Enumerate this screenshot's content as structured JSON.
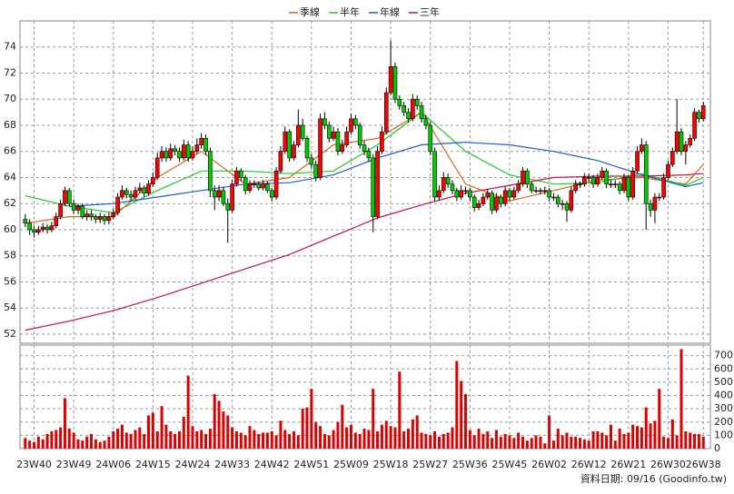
{
  "chart_data": {
    "type": "candlestick",
    "up_color": "#ff0000",
    "down_color": "#00cc00",
    "xlim": [
      -1.2,
      155.6
    ],
    "ylim": [
      51.3,
      76
    ],
    "yticks": [
      52,
      54,
      56,
      58,
      60,
      62,
      64,
      66,
      68,
      70,
      72,
      74
    ],
    "xticks": [
      {
        "value": 2,
        "label": "23W40"
      },
      {
        "value": 11,
        "label": "23W49"
      },
      {
        "value": 20,
        "label": "24W06"
      },
      {
        "value": 29,
        "label": "24W15"
      },
      {
        "value": 38,
        "label": "24W24"
      },
      {
        "value": 47,
        "label": "24W33"
      },
      {
        "value": 56,
        "label": "24W42"
      },
      {
        "value": 65,
        "label": "24W51"
      },
      {
        "value": 74,
        "label": "25W09"
      },
      {
        "value": 83,
        "label": "25W18"
      },
      {
        "value": 92,
        "label": "25W27"
      },
      {
        "value": 101,
        "label": "25W36"
      },
      {
        "value": 110,
        "label": "25W45"
      },
      {
        "value": 119,
        "label": "26W02"
      },
      {
        "value": 128,
        "label": "26W12"
      },
      {
        "value": 137,
        "label": "26W21"
      },
      {
        "value": 146,
        "label": "26W30"
      },
      {
        "value": 154,
        "label": "26W38"
      }
    ],
    "grid": true,
    "ohlc": [
      [
        60.8,
        61.2,
        60.2,
        60.5
      ],
      [
        60.5,
        60.8,
        59.6,
        60
      ],
      [
        60,
        60.3,
        59.4,
        59.8
      ],
      [
        59.8,
        60.3,
        59.6,
        60
      ],
      [
        60,
        60.5,
        59.8,
        60.2
      ],
      [
        60.2,
        60.4,
        59.7,
        60
      ],
      [
        60,
        60.6,
        59.8,
        60.3
      ],
      [
        60.3,
        61.3,
        60.1,
        61
      ],
      [
        61,
        62.3,
        60.8,
        62
      ],
      [
        62,
        63.3,
        61.8,
        63
      ],
      [
        63,
        63.2,
        61.8,
        62
      ],
      [
        62,
        62.3,
        61.2,
        61.5
      ],
      [
        61.5,
        62,
        61.2,
        61.8
      ],
      [
        61.8,
        62,
        60.8,
        61
      ],
      [
        61,
        61.5,
        60.7,
        61.2
      ],
      [
        61.2,
        61.5,
        60.7,
        61
      ],
      [
        61,
        61.2,
        60.5,
        60.8
      ],
      [
        60.8,
        61.3,
        60.5,
        61
      ],
      [
        61,
        61.2,
        60.4,
        60.7
      ],
      [
        60.7,
        61.3,
        60.4,
        61
      ],
      [
        61,
        61.6,
        60.8,
        61.3
      ],
      [
        61.3,
        62.8,
        61.1,
        62.5
      ],
      [
        62.5,
        63.4,
        62.3,
        63
      ],
      [
        63,
        63.2,
        62.4,
        62.7
      ],
      [
        62.7,
        63,
        62.2,
        62.5
      ],
      [
        62.5,
        63.3,
        62.3,
        63
      ],
      [
        63,
        63.6,
        62.8,
        63.2
      ],
      [
        63.2,
        63.4,
        62.5,
        62.8
      ],
      [
        62.8,
        63.8,
        62.6,
        63.5
      ],
      [
        63.5,
        64.4,
        63.3,
        64
      ],
      [
        64,
        65.9,
        63.8,
        65.5
      ],
      [
        65.5,
        66.4,
        65.2,
        66
      ],
      [
        66,
        66.3,
        65.2,
        65.5
      ],
      [
        65.5,
        66.6,
        65.3,
        66.2
      ],
      [
        66.2,
        66.5,
        65.7,
        66
      ],
      [
        66,
        66.3,
        65.2,
        65.5
      ],
      [
        65.5,
        66.9,
        65.3,
        66.5
      ],
      [
        66.5,
        66.8,
        65.2,
        65.5
      ],
      [
        65.5,
        66.4,
        65.3,
        66
      ],
      [
        66,
        67,
        65.8,
        66.5
      ],
      [
        66.5,
        67.4,
        66.2,
        67
      ],
      [
        67,
        67.3,
        65.7,
        66
      ],
      [
        66,
        66.3,
        62.5,
        63
      ],
      [
        63,
        63.4,
        61.5,
        62.5
      ],
      [
        62.5,
        63.4,
        62.2,
        63
      ],
      [
        63,
        63.3,
        61.8,
        62
      ],
      [
        62,
        62.4,
        59,
        61.5
      ],
      [
        61.5,
        63.8,
        61.3,
        63.5
      ],
      [
        63.5,
        64.8,
        63.3,
        64.5
      ],
      [
        64.5,
        64.7,
        63.7,
        64
      ],
      [
        64,
        64.2,
        62.7,
        63
      ],
      [
        63,
        63.8,
        62.8,
        63.5
      ],
      [
        63.5,
        63.8,
        63.2,
        63.5
      ],
      [
        63.5,
        63.7,
        63,
        63.2
      ],
      [
        63.2,
        63.8,
        63,
        63.5
      ],
      [
        63.5,
        63.7,
        62.8,
        63
      ],
      [
        63,
        63.2,
        62.2,
        62.5
      ],
      [
        62.5,
        64.8,
        62.3,
        64.5
      ],
      [
        64.5,
        66.4,
        64.3,
        66
      ],
      [
        66,
        67.9,
        65.8,
        67.5
      ],
      [
        67.5,
        67.7,
        65.2,
        65.5
      ],
      [
        65.5,
        66.8,
        65.3,
        66.5
      ],
      [
        66.5,
        69.2,
        66.3,
        68
      ],
      [
        68,
        68.5,
        66.8,
        67
      ],
      [
        67,
        67.2,
        65.2,
        65.5
      ],
      [
        65.5,
        65.8,
        64.7,
        65
      ],
      [
        65,
        65.3,
        63.7,
        64
      ],
      [
        64,
        68.9,
        63.8,
        68.5
      ],
      [
        68.5,
        69,
        67.7,
        68
      ],
      [
        68,
        68.3,
        66.7,
        67
      ],
      [
        67,
        67.9,
        66.8,
        67.5
      ],
      [
        67.5,
        67.8,
        65.7,
        66
      ],
      [
        66,
        66.9,
        65.8,
        66.5
      ],
      [
        66.5,
        67.9,
        66.3,
        67.5
      ],
      [
        67.5,
        68.9,
        67.3,
        68.5
      ],
      [
        68.5,
        68.8,
        67.7,
        68
      ],
      [
        68,
        68.2,
        66.2,
        66.5
      ],
      [
        66.5,
        66.8,
        65.7,
        66
      ],
      [
        66,
        66.3,
        65.2,
        65.5
      ],
      [
        65.5,
        65.8,
        59.8,
        61
      ],
      [
        61,
        66.4,
        60.8,
        66
      ],
      [
        66,
        67.9,
        65.8,
        67.5
      ],
      [
        67.5,
        70.9,
        67.3,
        70.5
      ],
      [
        70.5,
        74.5,
        70.3,
        72.5
      ],
      [
        72.5,
        72.8,
        69.7,
        70
      ],
      [
        70,
        70.3,
        69.2,
        69.5
      ],
      [
        69.5,
        69.8,
        68.7,
        69
      ],
      [
        69,
        69.3,
        68.2,
        68.5
      ],
      [
        68.5,
        70.4,
        68.3,
        70
      ],
      [
        70,
        70.3,
        69.2,
        69.5
      ],
      [
        69.5,
        69.8,
        68.2,
        68.5
      ],
      [
        68.5,
        68.8,
        67.7,
        68
      ],
      [
        68,
        68.3,
        65.7,
        66
      ],
      [
        66,
        66.3,
        62.2,
        62.5
      ],
      [
        62.5,
        63.4,
        62.2,
        63
      ],
      [
        63,
        64.4,
        62.8,
        64
      ],
      [
        64,
        64.3,
        63.2,
        63.5
      ],
      [
        63.5,
        63.8,
        62.7,
        63
      ],
      [
        63,
        63.2,
        62.2,
        62.5
      ],
      [
        62.5,
        63.4,
        62.3,
        63
      ],
      [
        63,
        63.3,
        62.7,
        63
      ],
      [
        63,
        63.2,
        62.2,
        62.5
      ],
      [
        62.5,
        62.7,
        61.4,
        61.7
      ],
      [
        61.7,
        62.3,
        61.5,
        62
      ],
      [
        62,
        62.8,
        61.8,
        62.5
      ],
      [
        62.5,
        63.1,
        62.3,
        62.8
      ],
      [
        62.8,
        63,
        61.2,
        61.5
      ],
      [
        61.5,
        62.8,
        61.3,
        62.5
      ],
      [
        62.5,
        62.7,
        61.7,
        62
      ],
      [
        62,
        63.3,
        61.8,
        63
      ],
      [
        63,
        63.2,
        62.2,
        62.5
      ],
      [
        62.5,
        63.3,
        62.3,
        63
      ],
      [
        63,
        63.8,
        62.8,
        63.5
      ],
      [
        63.5,
        64.8,
        63.3,
        64.5
      ],
      [
        64.5,
        64.7,
        63.2,
        63.5
      ],
      [
        63.5,
        63.7,
        62.8,
        63
      ],
      [
        63,
        63.3,
        62.8,
        63
      ],
      [
        63,
        63.2,
        62.7,
        63
      ],
      [
        63,
        63.3,
        62.7,
        63
      ],
      [
        63,
        63.2,
        62.2,
        62.5
      ],
      [
        62.5,
        62.8,
        62.2,
        62.5
      ],
      [
        62.5,
        62.7,
        61.7,
        62
      ],
      [
        62,
        62.3,
        61.5,
        62
      ],
      [
        62,
        62.2,
        60.6,
        61.5
      ],
      [
        61.5,
        63.3,
        61.3,
        63
      ],
      [
        63,
        63.8,
        62.8,
        63.5
      ],
      [
        63.5,
        63.7,
        63.2,
        63.5
      ],
      [
        63.5,
        64.3,
        63.3,
        64
      ],
      [
        64,
        64.3,
        63.7,
        64
      ],
      [
        64,
        64.2,
        63.2,
        63.5
      ],
      [
        63.5,
        64.3,
        63.3,
        64
      ],
      [
        64,
        64.8,
        63.8,
        64.5
      ],
      [
        64.5,
        64.7,
        63.2,
        63.5
      ],
      [
        63.5,
        63.8,
        63.2,
        63.5
      ],
      [
        63.5,
        63.8,
        63.2,
        63.5
      ],
      [
        63.5,
        63.7,
        62.7,
        63
      ],
      [
        63,
        64.3,
        62.8,
        64
      ],
      [
        64,
        64.2,
        62.2,
        62.5
      ],
      [
        62.5,
        64.8,
        62.3,
        64.5
      ],
      [
        64.5,
        66.4,
        64.3,
        66
      ],
      [
        66,
        67,
        65.8,
        66.5
      ],
      [
        66.5,
        66.8,
        60,
        62
      ],
      [
        62,
        62.3,
        61,
        61.5
      ],
      [
        61.5,
        62.8,
        60.5,
        62.5
      ],
      [
        62.5,
        62.8,
        62.2,
        62.5
      ],
      [
        62.5,
        64.3,
        62.3,
        64
      ],
      [
        64,
        65.3,
        63.8,
        65
      ],
      [
        65,
        66.3,
        64.8,
        66
      ],
      [
        66,
        70,
        65.8,
        67.5
      ],
      [
        67.5,
        67.8,
        65.7,
        66
      ],
      [
        66,
        66.8,
        65,
        66.5
      ],
      [
        66.5,
        67.3,
        66.3,
        67
      ],
      [
        67,
        69.3,
        66.8,
        69
      ],
      [
        69,
        69.2,
        68.2,
        68.5
      ],
      [
        68.5,
        69.8,
        68.3,
        69.5
      ]
    ],
    "volume": {
      "color": "#dd0000",
      "values": [
        80,
        60,
        50,
        90,
        70,
        110,
        130,
        140,
        160,
        380,
        150,
        120,
        70,
        60,
        90,
        110,
        70,
        50,
        60,
        90,
        130,
        150,
        180,
        120,
        110,
        140,
        160,
        110,
        250,
        270,
        130,
        320,
        180,
        130,
        110,
        130,
        240,
        550,
        170,
        130,
        140,
        110,
        150,
        410,
        360,
        280,
        250,
        160,
        130,
        120,
        100,
        170,
        140,
        110,
        120,
        120,
        130,
        100,
        210,
        140,
        110,
        130,
        100,
        300,
        310,
        450,
        200,
        170,
        110,
        100,
        140,
        200,
        330,
        160,
        180,
        120,
        110,
        150,
        140,
        450,
        130,
        180,
        210,
        170,
        160,
        580,
        130,
        150,
        220,
        250,
        120,
        110,
        100,
        130,
        90,
        110,
        120,
        160,
        660,
        510,
        410,
        140,
        100,
        150,
        110,
        130,
        80,
        140,
        90,
        110,
        100,
        80,
        120,
        90,
        60,
        80,
        100,
        90,
        40,
        250,
        60,
        150,
        100,
        120,
        90,
        90,
        80,
        70,
        60,
        130,
        130,
        120,
        100,
        180,
        60,
        150,
        110,
        120,
        180,
        170,
        160,
        310,
        190,
        210,
        450,
        90,
        80,
        220,
        100,
        750,
        130,
        120,
        110,
        110,
        90
      ]
    },
    "y2lim": [
      0,
      780
    ],
    "y2ticks": [
      0,
      100,
      200,
      300,
      400,
      500,
      600,
      700
    ],
    "series": [
      {
        "name": "季線",
        "color": "#d2691e",
        "x": [
          0,
          10,
          20,
          30,
          40,
          50,
          60,
          70,
          80,
          90,
          100,
          110,
          120,
          130,
          140,
          150,
          154
        ],
        "values": [
          60.5,
          61,
          61,
          64,
          66,
          63.5,
          64,
          66.5,
          67,
          69,
          63.5,
          62.2,
          63,
          63.8,
          64,
          63.5,
          65
        ]
      },
      {
        "name": "半年",
        "color": "#22cc22",
        "x": [
          0,
          10,
          20,
          30,
          40,
          50,
          60,
          70,
          80,
          90,
          100,
          110,
          120,
          130,
          140,
          150,
          154
        ],
        "values": [
          62.6,
          61.8,
          61.3,
          63,
          64.5,
          64.5,
          64.3,
          64.5,
          66.5,
          69,
          66,
          64.2,
          63.5,
          63.6,
          64.3,
          63.4,
          64
        ]
      },
      {
        "name": "年線",
        "color": "#1e5ad2",
        "x": [
          10,
          20,
          30,
          40,
          50,
          60,
          70,
          80,
          90,
          100,
          110,
          120,
          130,
          140,
          150,
          154
        ],
        "values": [
          61.8,
          62,
          62.5,
          63,
          63.5,
          63.6,
          64.2,
          65.5,
          66.5,
          66.7,
          66.5,
          66,
          65.3,
          64.2,
          63.3,
          63.6
        ]
      },
      {
        "name": "三年",
        "color": "#c8143c",
        "x": [
          0,
          10,
          20,
          30,
          40,
          50,
          60,
          70,
          80,
          90,
          100,
          110,
          120,
          130,
          140,
          150,
          154
        ],
        "values": [
          52.3,
          53,
          53.8,
          54.8,
          55.9,
          57,
          58.1,
          59.5,
          60.9,
          61.9,
          62.8,
          63.4,
          64,
          64.1,
          64.1,
          64.2,
          64.3
        ]
      }
    ],
    "footer": "資料日期: 09/16  (Goodinfo.tw)"
  }
}
